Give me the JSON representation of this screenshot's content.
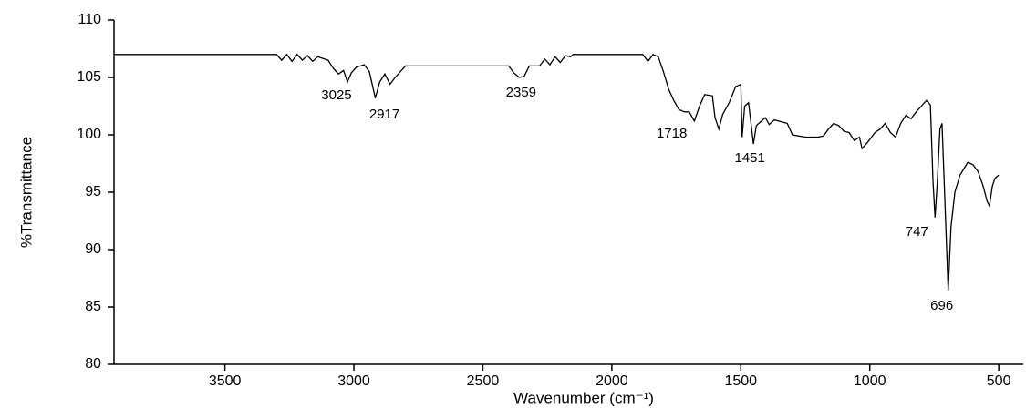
{
  "chart_data": {
    "type": "line",
    "x_label": "Wavenumber (cm⁻¹)",
    "y_label": "%Transmittance",
    "color": "#000000",
    "xlim": [
      3930,
      405
    ],
    "ylim": [
      80,
      110
    ],
    "xticks": [
      3500,
      3000,
      2500,
      2000,
      1500,
      1000,
      500
    ],
    "yticks": [
      80,
      85,
      90,
      95,
      100,
      105,
      110
    ],
    "x": [
      3930,
      3300,
      3280,
      3260,
      3240,
      3220,
      3200,
      3180,
      3160,
      3140,
      3100,
      3080,
      3060,
      3040,
      3025,
      3010,
      2990,
      2960,
      2940,
      2917,
      2900,
      2880,
      2860,
      2840,
      2800,
      2400,
      2380,
      2359,
      2340,
      2320,
      2280,
      2260,
      2240,
      2220,
      2200,
      2180,
      2160,
      2150,
      1880,
      1860,
      1840,
      1820,
      1800,
      1780,
      1760,
      1740,
      1718,
      1700,
      1680,
      1660,
      1640,
      1610,
      1600,
      1585,
      1570,
      1545,
      1520,
      1500,
      1495,
      1485,
      1470,
      1451,
      1440,
      1420,
      1405,
      1390,
      1370,
      1320,
      1300,
      1250,
      1200,
      1180,
      1160,
      1140,
      1120,
      1100,
      1080,
      1060,
      1040,
      1030,
      1010,
      980,
      960,
      940,
      920,
      900,
      880,
      860,
      840,
      820,
      800,
      780,
      765,
      755,
      747,
      738,
      728,
      720,
      710,
      696,
      685,
      670,
      650,
      620,
      600,
      580,
      560,
      545,
      536,
      525,
      515,
      500
    ],
    "values": [
      107,
      107,
      106.5,
      107,
      106.4,
      107,
      106.5,
      106.9,
      106.4,
      106.8,
      106.5,
      105.8,
      105.3,
      105.6,
      104.6,
      105.4,
      105.9,
      106.1,
      105.5,
      103.2,
      104.6,
      105.3,
      104.4,
      105.0,
      106,
      106,
      105.4,
      105.0,
      105.1,
      106,
      106,
      106.6,
      106.1,
      106.8,
      106.3,
      106.9,
      106.8,
      107,
      107,
      106.4,
      107,
      106.8,
      105.5,
      104,
      103,
      102.2,
      102,
      102,
      101.2,
      102.5,
      103.5,
      103.4,
      101.5,
      100.5,
      101.8,
      102.8,
      104.2,
      104.4,
      99.8,
      102.5,
      102.8,
      99.2,
      100.8,
      101.2,
      101.5,
      100.9,
      101.3,
      101,
      100,
      99.8,
      99.8,
      99.9,
      100.5,
      101,
      100.8,
      100.3,
      100.2,
      99.5,
      99.8,
      98.8,
      99.3,
      100.2,
      100.5,
      101,
      100.2,
      99.8,
      101,
      101.7,
      101.4,
      102,
      102.5,
      103,
      102.6,
      96,
      92.8,
      96,
      100.5,
      101,
      95,
      86.4,
      92,
      95,
      96.5,
      97.6,
      97.4,
      96.8,
      95.5,
      94.2,
      93.8,
      95.5,
      96.2,
      96.5
    ],
    "peak_labels": [
      3025,
      2917,
      2359,
      1718,
      1451,
      747,
      696
    ]
  }
}
